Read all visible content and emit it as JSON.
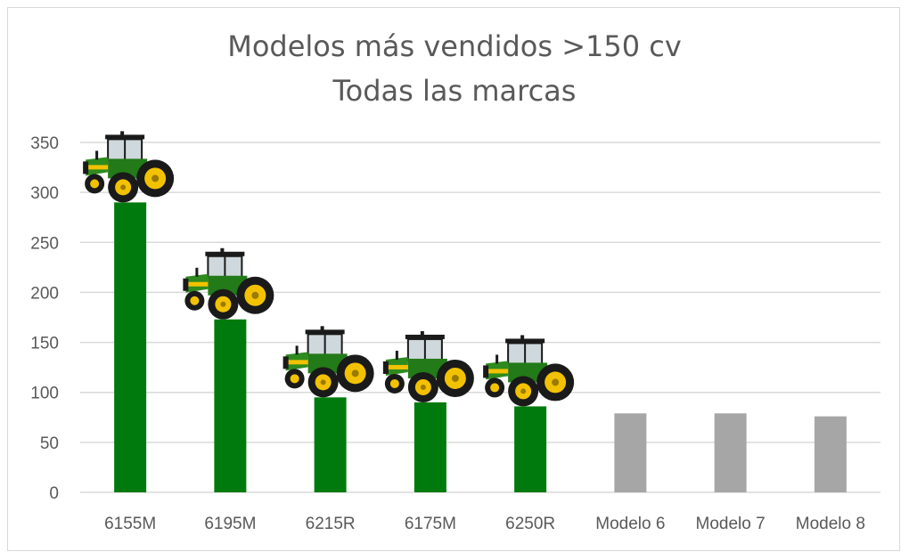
{
  "chart_data": {
    "type": "bar",
    "title": "Modelos más vendidos >150 cv",
    "subtitle": "Todas las marcas",
    "categories": [
      "6155M",
      "6195M",
      "6215R",
      "6175M",
      "6250R",
      "Modelo 6",
      "Modelo 7",
      "Modelo 8"
    ],
    "values": [
      290,
      173,
      95,
      90,
      86,
      79,
      79,
      76
    ],
    "highlight": [
      true,
      true,
      true,
      true,
      true,
      false,
      false,
      false
    ],
    "ylim": [
      0,
      350
    ],
    "yticks": [
      0,
      50,
      100,
      150,
      200,
      250,
      300,
      350
    ],
    "grid": true,
    "colors": {
      "highlight": "#007a0c",
      "other": "#a6a6a6",
      "grid": "#d9d9d9",
      "text": "#595959"
    },
    "icon": "tractor-icon"
  }
}
